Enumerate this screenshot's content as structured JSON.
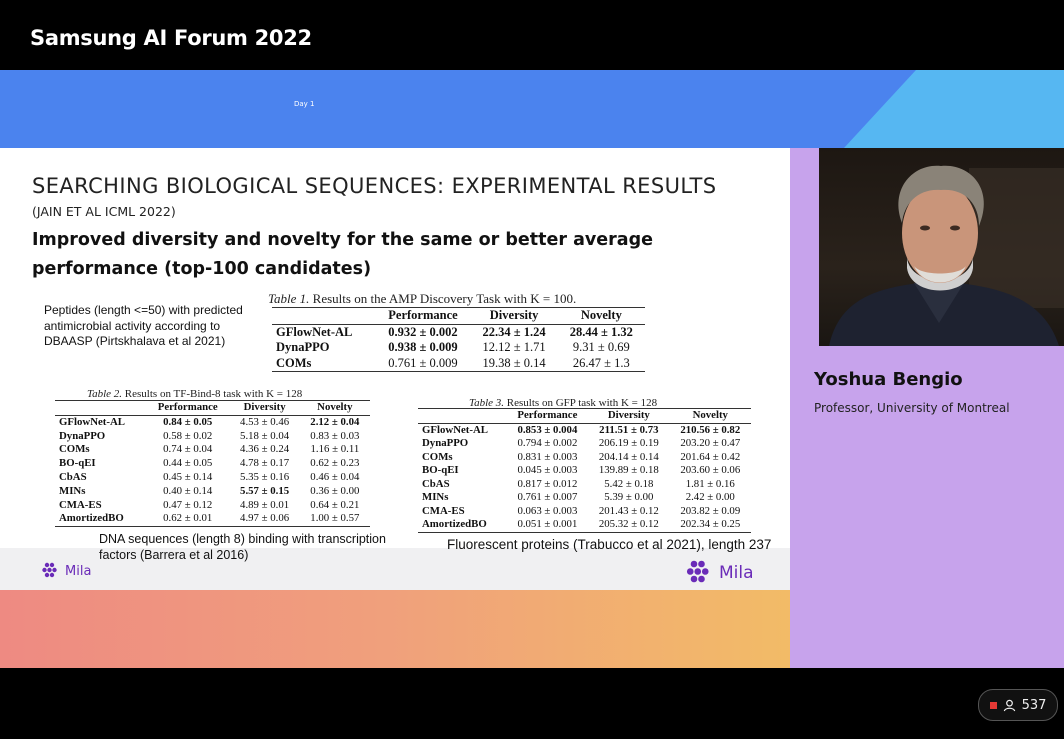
{
  "header": {
    "title": "Samsung AI Forum 2022",
    "day": "Day 1"
  },
  "slide": {
    "title": "SEARCHING BIOLOGICAL SEQUENCES: EXPERIMENTAL RESULTS",
    "citation": "(JAIN ET AL ICML 2022)",
    "subtitle": "Improved diversity and novelty for the same or better average performance (top-100 candidates)",
    "desc_amp": "Peptides (length <=50) with predicted antimicrobial activity according to DBAASP (Pirtskhalava et al 2021)",
    "desc_dna": "DNA sequences (length 8) binding with transcription factors (Barrera et al 2016)",
    "desc_gfp": "Fluorescent proteins (Trabucco et al 2021), length 237",
    "logo_text": "Mila",
    "table1": {
      "label": "Table 1.",
      "caption": "Results on the AMP Discovery Task with K = 100.",
      "headers": [
        "",
        "Performance",
        "Diversity",
        "Novelty"
      ],
      "rows": [
        [
          "GFlowNet-AL",
          "0.932 ± 0.002",
          "22.34 ± 1.24",
          "28.44 ± 1.32"
        ],
        [
          "DynaPPO",
          "0.938 ± 0.009",
          "12.12 ± 1.71",
          "9.31 ± 0.69"
        ],
        [
          "COMs",
          "0.761 ± 0.009",
          "19.38 ± 0.14",
          "26.47 ± 1.3"
        ]
      ]
    },
    "table2": {
      "label": "Table 2.",
      "caption": "Results on TF-Bind-8 task with K = 128",
      "headers": [
        "",
        "Performance",
        "Diversity",
        "Novelty"
      ],
      "rows": [
        [
          "GFlowNet-AL",
          "0.84 ± 0.05",
          "4.53 ± 0.46",
          "2.12 ± 0.04"
        ],
        [
          "DynaPPO",
          "0.58 ± 0.02",
          "5.18 ± 0.04",
          "0.83 ± 0.03"
        ],
        [
          "COMs",
          "0.74 ± 0.04",
          "4.36 ± 0.24",
          "1.16 ± 0.11"
        ],
        [
          "BO-qEI",
          "0.44 ± 0.05",
          "4.78 ± 0.17",
          "0.62 ± 0.23"
        ],
        [
          "CbAS",
          "0.45 ± 0.14",
          "5.35 ± 0.16",
          "0.46 ± 0.04"
        ],
        [
          "MINs",
          "0.40 ± 0.14",
          "5.57 ± 0.15",
          "0.36 ± 0.00"
        ],
        [
          "CMA-ES",
          "0.47 ± 0.12",
          "4.89 ± 0.01",
          "0.64 ± 0.21"
        ],
        [
          "AmortizedBO",
          "0.62 ± 0.01",
          "4.97 ± 0.06",
          "1.00 ± 0.57"
        ]
      ]
    },
    "table3": {
      "label": "Table 3.",
      "caption": "Results on GFP task with K = 128",
      "headers": [
        "",
        "Performance",
        "Diversity",
        "Novelty"
      ],
      "rows": [
        [
          "GFlowNet-AL",
          "0.853 ± 0.004",
          "211.51 ± 0.73",
          "210.56 ± 0.82"
        ],
        [
          "DynaPPO",
          "0.794 ± 0.002",
          "206.19 ± 0.19",
          "203.20 ± 0.47"
        ],
        [
          "COMs",
          "0.831 ± 0.003",
          "204.14 ± 0.14",
          "201.64 ± 0.42"
        ],
        [
          "BO-qEI",
          "0.045 ± 0.003",
          "139.89 ± 0.18",
          "203.60 ± 0.06"
        ],
        [
          "CbAS",
          "0.817 ± 0.012",
          "5.42 ± 0.18",
          "1.81 ± 0.16"
        ],
        [
          "MINs",
          "0.761 ± 0.007",
          "5.39 ± 0.00",
          "2.42 ± 0.00"
        ],
        [
          "CMA-ES",
          "0.063 ± 0.003",
          "201.43 ± 0.12",
          "203.82 ± 0.09"
        ],
        [
          "AmortizedBO",
          "0.051 ± 0.001",
          "205.32 ± 0.12",
          "202.34 ± 0.25"
        ]
      ]
    }
  },
  "speaker": {
    "name": "Yoshua Bengio",
    "role": "Professor, University of Montreal"
  },
  "viewers": {
    "count": "537",
    "icon": "person-icon"
  },
  "colors": {
    "header_blue": "#4b83ee",
    "header_cyan": "#56b7f2",
    "panel_purple": "#c7a3ec",
    "mila_purple": "#6a2bb8",
    "live_red": "#e53935"
  }
}
